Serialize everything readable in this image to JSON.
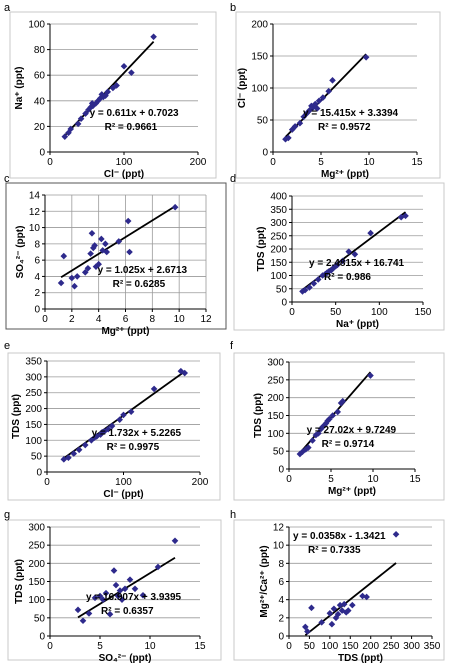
{
  "figure": {
    "colors": {
      "marker": "#2e2a8c",
      "fit_line": "#000000",
      "grid": "#9a9a9a",
      "panel_border": "#c9c9c9",
      "panel_bg": "#ffffff"
    }
  },
  "chart_data": [
    {
      "panel_letter": "a",
      "type": "scatter",
      "xlabel": "Cl⁻ (ppt)",
      "ylabel": "Na⁺ (ppt)",
      "xlim": [
        0,
        200
      ],
      "ylim": [
        0,
        100
      ],
      "xticks": [
        0,
        100,
        200
      ],
      "yticks": [
        0,
        20,
        40,
        60,
        80,
        100
      ],
      "grid": "horizontal",
      "fit": {
        "slope": 0.611,
        "intercept": 0.7023
      },
      "equation": "y = 0.611x + 0.7023",
      "r2": "R² = 0.9661",
      "points": [
        [
          20,
          12
        ],
        [
          25,
          15
        ],
        [
          28,
          18
        ],
        [
          38,
          22
        ],
        [
          42,
          26
        ],
        [
          48,
          30
        ],
        [
          52,
          33
        ],
        [
          55,
          35
        ],
        [
          57,
          38
        ],
        [
          58,
          36
        ],
        [
          62,
          38
        ],
        [
          65,
          40
        ],
        [
          68,
          42
        ],
        [
          70,
          45
        ],
        [
          72,
          43
        ],
        [
          75,
          44
        ],
        [
          78,
          47
        ],
        [
          85,
          50
        ],
        [
          90,
          52
        ],
        [
          100,
          67
        ],
        [
          110,
          62
        ],
        [
          140,
          90
        ]
      ]
    },
    {
      "panel_letter": "b",
      "type": "scatter",
      "xlabel": "Mg²⁺ (ppt)",
      "ylabel": "Cl⁻ (ppt)",
      "xlim": [
        0,
        15
      ],
      "ylim": [
        0,
        200
      ],
      "xticks": [
        0,
        5,
        10,
        15
      ],
      "yticks": [
        0,
        50,
        100,
        150,
        200
      ],
      "grid": "horizontal",
      "fit": {
        "slope": 15.415,
        "intercept": 3.3394
      },
      "equation": "y = 15.415x + 3.3394",
      "r2": "R² = 0.9572",
      "points": [
        [
          1.3,
          20
        ],
        [
          1.6,
          22
        ],
        [
          2.0,
          35
        ],
        [
          2.3,
          40
        ],
        [
          2.8,
          45
        ],
        [
          3.2,
          55
        ],
        [
          3.5,
          60
        ],
        [
          3.8,
          65
        ],
        [
          4.0,
          72
        ],
        [
          4.2,
          70
        ],
        [
          4.4,
          75
        ],
        [
          4.6,
          68
        ],
        [
          4.8,
          80
        ],
        [
          5.2,
          85
        ],
        [
          5.8,
          95
        ],
        [
          6.2,
          112
        ],
        [
          9.7,
          148
        ]
      ]
    },
    {
      "panel_letter": "c",
      "type": "scatter",
      "xlabel": "Mg²⁺ (ppt)",
      "ylabel": "SO₄²⁻ (ppt)",
      "xlim": [
        0,
        12
      ],
      "ylim": [
        0,
        14
      ],
      "xticks": [
        0,
        2,
        4,
        6,
        8,
        10,
        12
      ],
      "yticks": [
        0,
        2,
        4,
        6,
        8,
        10,
        12,
        14
      ],
      "grid": "both",
      "fit": {
        "slope": 1.025,
        "intercept": 2.6713
      },
      "equation": "y = 1.025x + 2.6713",
      "r2": "R² = 0.6285",
      "points": [
        [
          1.2,
          3.2
        ],
        [
          1.4,
          6.5
        ],
        [
          2.0,
          3.8
        ],
        [
          2.2,
          2.8
        ],
        [
          2.4,
          4.0
        ],
        [
          3.0,
          4.5
        ],
        [
          3.2,
          5.0
        ],
        [
          3.4,
          6.8
        ],
        [
          3.5,
          9.3
        ],
        [
          3.6,
          7.5
        ],
        [
          3.7,
          7.8
        ],
        [
          3.8,
          5.2
        ],
        [
          4.0,
          5.5
        ],
        [
          4.2,
          8.6
        ],
        [
          4.3,
          7.2
        ],
        [
          4.5,
          8.0
        ],
        [
          4.6,
          7.0
        ],
        [
          5.5,
          8.3
        ],
        [
          6.2,
          10.8
        ],
        [
          6.3,
          7.0
        ],
        [
          9.7,
          12.5
        ]
      ]
    },
    {
      "panel_letter": "d",
      "type": "scatter",
      "xlabel": "Na⁺ (ppt)",
      "ylabel": "TDS (ppt)",
      "xlim": [
        0,
        150
      ],
      "ylim": [
        0,
        400
      ],
      "xticks": [
        0,
        50,
        100,
        150
      ],
      "yticks": [
        0,
        50,
        100,
        150,
        200,
        250,
        300,
        350,
        400
      ],
      "grid": "horizontal",
      "fit": {
        "slope": 2.4815,
        "intercept": 16.741
      },
      "equation": "y = 2.4815x + 16.741",
      "r2": "R² = 0.986",
      "points": [
        [
          12,
          40
        ],
        [
          15,
          45
        ],
        [
          20,
          55
        ],
        [
          25,
          70
        ],
        [
          30,
          85
        ],
        [
          35,
          100
        ],
        [
          38,
          105
        ],
        [
          40,
          110
        ],
        [
          42,
          115
        ],
        [
          45,
          120
        ],
        [
          48,
          130
        ],
        [
          50,
          135
        ],
        [
          52,
          140
        ],
        [
          58,
          155
        ],
        [
          65,
          190
        ],
        [
          72,
          180
        ],
        [
          90,
          260
        ],
        [
          125,
          320
        ],
        [
          130,
          325
        ]
      ]
    },
    {
      "panel_letter": "e",
      "type": "scatter",
      "xlabel": "Cl⁻ (ppt)",
      "ylabel": "TDS (ppt)",
      "xlim": [
        0,
        200
      ],
      "ylim": [
        0,
        350
      ],
      "xticks": [
        0,
        100,
        200
      ],
      "yticks": [
        0,
        50,
        100,
        150,
        200,
        250,
        300,
        350
      ],
      "grid": "horizontal",
      "fit": {
        "slope": 1.732,
        "intercept": 5.2265
      },
      "equation": "y = 1.732x + 5.2265",
      "r2": "R² = 0.9975",
      "points": [
        [
          22,
          40
        ],
        [
          28,
          45
        ],
        [
          35,
          58
        ],
        [
          42,
          70
        ],
        [
          50,
          85
        ],
        [
          58,
          100
        ],
        [
          62,
          108
        ],
        [
          65,
          112
        ],
        [
          70,
          118
        ],
        [
          72,
          125
        ],
        [
          75,
          128
        ],
        [
          80,
          135
        ],
        [
          85,
          145
        ],
        [
          95,
          165
        ],
        [
          100,
          180
        ],
        [
          110,
          190
        ],
        [
          140,
          262
        ],
        [
          175,
          318
        ],
        [
          180,
          312
        ]
      ]
    },
    {
      "panel_letter": "f",
      "type": "scatter",
      "xlabel": "Mg²⁺ (ppt)",
      "ylabel": "TDS (ppt)",
      "xlim": [
        0,
        15
      ],
      "ylim": [
        0,
        300
      ],
      "xticks": [
        0,
        5,
        10,
        15
      ],
      "yticks": [
        0,
        50,
        100,
        150,
        200,
        250,
        300
      ],
      "grid": "horizontal",
      "fit": {
        "slope": 27.02,
        "intercept": 9.7249
      },
      "equation": "y = 27.02x + 9.7249",
      "r2": "R² = 0.9714",
      "points": [
        [
          1.3,
          42
        ],
        [
          1.6,
          48
        ],
        [
          2.0,
          55
        ],
        [
          2.3,
          60
        ],
        [
          2.8,
          80
        ],
        [
          3.2,
          95
        ],
        [
          3.5,
          100
        ],
        [
          3.8,
          112
        ],
        [
          4.0,
          118
        ],
        [
          4.2,
          122
        ],
        [
          4.4,
          128
        ],
        [
          4.6,
          135
        ],
        [
          4.8,
          140
        ],
        [
          5.2,
          150
        ],
        [
          5.8,
          160
        ],
        [
          6.2,
          185
        ],
        [
          6.4,
          190
        ],
        [
          9.7,
          262
        ]
      ]
    },
    {
      "panel_letter": "g",
      "type": "scatter",
      "xlabel": "SO₄²⁻ (ppt)",
      "ylabel": "TDS (ppt)",
      "xlim": [
        0,
        15
      ],
      "ylim": [
        0,
        300
      ],
      "xticks": [
        0,
        5,
        10,
        15
      ],
      "yticks": [
        0,
        50,
        100,
        150,
        200,
        250,
        300
      ],
      "grid": "horizontal",
      "fit": {
        "slope": 16.907,
        "intercept": 3.9395
      },
      "equation": "y = 16.907x + 3.9395",
      "r2": "R² = 0.6357",
      "points": [
        [
          2.8,
          72
        ],
        [
          3.3,
          42
        ],
        [
          3.9,
          62
        ],
        [
          4.5,
          105
        ],
        [
          5.0,
          110
        ],
        [
          5.3,
          100
        ],
        [
          5.6,
          118
        ],
        [
          6.0,
          60
        ],
        [
          6.4,
          180
        ],
        [
          6.6,
          140
        ],
        [
          6.8,
          110
        ],
        [
          7.0,
          125
        ],
        [
          7.2,
          100
        ],
        [
          7.5,
          130
        ],
        [
          8.0,
          155
        ],
        [
          8.5,
          130
        ],
        [
          9.3,
          112
        ],
        [
          10.8,
          190
        ],
        [
          12.5,
          262
        ]
      ]
    },
    {
      "panel_letter": "h",
      "type": "scatter",
      "xlabel": "TDS (ppt)",
      "ylabel": "Mg²⁺/Ca²⁺ (ppt)",
      "xlim": [
        0,
        350
      ],
      "ylim": [
        0,
        12
      ],
      "xticks": [
        0,
        50,
        100,
        150,
        200,
        250,
        300,
        350
      ],
      "yticks": [
        0,
        2,
        4,
        6,
        8,
        10,
        12
      ],
      "grid": "horizontal",
      "fit": {
        "slope": 0.0358,
        "intercept": -1.3421
      },
      "equation": "y = 0.0358x - 1.3421",
      "r2": "R² = 0.7335",
      "points": [
        [
          40,
          1.0
        ],
        [
          45,
          0.5
        ],
        [
          55,
          3.1
        ],
        [
          80,
          1.5
        ],
        [
          100,
          2.5
        ],
        [
          105,
          1.3
        ],
        [
          110,
          3.0
        ],
        [
          115,
          2.0
        ],
        [
          120,
          2.4
        ],
        [
          125,
          3.4
        ],
        [
          130,
          2.8
        ],
        [
          135,
          3.5
        ],
        [
          140,
          2.6
        ],
        [
          145,
          2.8
        ],
        [
          155,
          3.4
        ],
        [
          180,
          4.4
        ],
        [
          190,
          4.3
        ],
        [
          262,
          11.2
        ]
      ]
    }
  ]
}
